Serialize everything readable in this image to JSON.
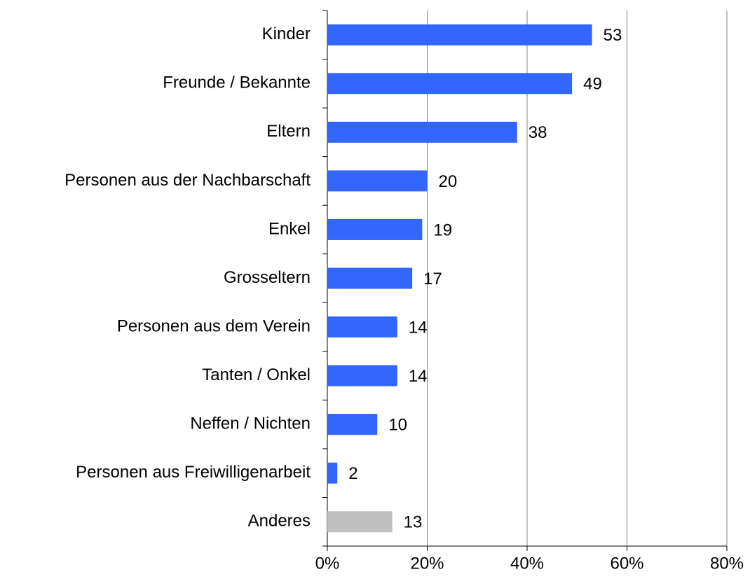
{
  "chart_data": {
    "type": "hbar",
    "categories": [
      "Kinder",
      "Freunde / Bekannte",
      "Eltern",
      "Personen aus der Nachbarschaft",
      "Enkel",
      "Grosseltern",
      "Personen aus dem Verein",
      "Tanten / Onkel",
      "Neffen / Nichten",
      "Personen aus Freiwilligenarbeit",
      "Anderes"
    ],
    "values": [
      53,
      49,
      38,
      20,
      19,
      17,
      14,
      14,
      10,
      2,
      13
    ],
    "colors": [
      "#3366ff",
      "#3366ff",
      "#3366ff",
      "#3366ff",
      "#3366ff",
      "#3366ff",
      "#3366ff",
      "#3366ff",
      "#3366ff",
      "#3366ff",
      "#c0c0c0"
    ],
    "xlim": [
      0,
      80
    ],
    "xticks": [
      {
        "value": 0,
        "label": "0%"
      },
      {
        "value": 20,
        "label": "20%"
      },
      {
        "value": 40,
        "label": "40%"
      },
      {
        "value": 60,
        "label": "60%"
      },
      {
        "value": 80,
        "label": "80%"
      }
    ],
    "grid": true
  }
}
